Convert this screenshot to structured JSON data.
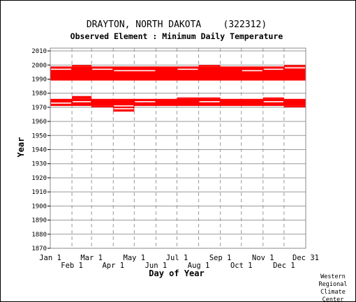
{
  "chart_data": {
    "type": "bar",
    "title": "DRAYTON, NORTH DAKOTA    (322312)",
    "subtitle": "Observed Element : Minimum Daily Temperature",
    "xlabel": "Day of Year",
    "ylabel": "Year",
    "ylim": [
      1870,
      2012
    ],
    "y_ticks": [
      1870,
      1880,
      1890,
      1900,
      1910,
      1920,
      1930,
      1940,
      1950,
      1960,
      1970,
      1980,
      1990,
      2000,
      2010
    ],
    "x_ticks_top": [
      "Jan 1",
      "Mar 1",
      "May 1",
      "Jul 1",
      "Sep 1",
      "Nov 1",
      "Dec 31"
    ],
    "x_ticks_bottom": [
      "Feb 1",
      "Apr 1",
      "Jun 1",
      "Aug 1",
      "Oct 1",
      "Dec 1"
    ],
    "month_start_days": [
      1,
      32,
      60,
      91,
      121,
      152,
      182,
      213,
      244,
      274,
      305,
      335,
      366
    ],
    "grid": true,
    "bar_color": "#ff0000",
    "series": [
      {
        "blocks": [
          {
            "day_start": 1,
            "day_end": 366,
            "year_start": 1989,
            "year_end": 1999
          },
          {
            "day_start": 32,
            "day_end": 60,
            "year_start": 1999,
            "year_end": 2000
          },
          {
            "day_start": 213,
            "day_end": 244,
            "year_start": 1999,
            "year_end": 2000
          },
          {
            "day_start": 335,
            "day_end": 366,
            "year_start": 1999,
            "year_end": 2000
          },
          {
            "day_start": 1,
            "day_end": 366,
            "year_start": 1971,
            "year_end": 1976
          },
          {
            "day_start": 32,
            "day_end": 60,
            "year_start": 1976,
            "year_end": 1978
          },
          {
            "day_start": 182,
            "day_end": 244,
            "year_start": 1976,
            "year_end": 1977
          },
          {
            "day_start": 305,
            "day_end": 335,
            "year_start": 1976,
            "year_end": 1977
          },
          {
            "day_start": 60,
            "day_end": 91,
            "year_start": 1970,
            "year_end": 1971
          },
          {
            "day_start": 335,
            "day_end": 366,
            "year_start": 1970,
            "year_end": 1971
          },
          {
            "day_start": 91,
            "day_end": 121,
            "year_start": 1967,
            "year_end": 1971
          }
        ],
        "gaps": [
          {
            "day_start": 1,
            "day_end": 32,
            "year": 1997
          },
          {
            "day_start": 60,
            "day_end": 91,
            "year": 1997
          },
          {
            "day_start": 91,
            "day_end": 152,
            "year": 1996
          },
          {
            "day_start": 182,
            "day_end": 213,
            "year": 1997
          },
          {
            "day_start": 274,
            "day_end": 305,
            "year": 1996
          },
          {
            "day_start": 305,
            "day_end": 335,
            "year": 1997
          },
          {
            "day_start": 335,
            "day_end": 366,
            "year": 1998
          },
          {
            "day_start": 1,
            "day_end": 32,
            "year": 1973
          },
          {
            "day_start": 32,
            "day_end": 60,
            "year": 1974
          },
          {
            "day_start": 121,
            "day_end": 152,
            "year": 1974
          },
          {
            "day_start": 213,
            "day_end": 244,
            "year": 1974
          },
          {
            "day_start": 305,
            "day_end": 335,
            "year": 1974
          },
          {
            "day_start": 91,
            "day_end": 121,
            "year": 1971
          },
          {
            "day_start": 91,
            "day_end": 121,
            "year": 1969
          }
        ]
      }
    ]
  },
  "credit": [
    "Western",
    "Regional",
    "Climate",
    "Center"
  ]
}
